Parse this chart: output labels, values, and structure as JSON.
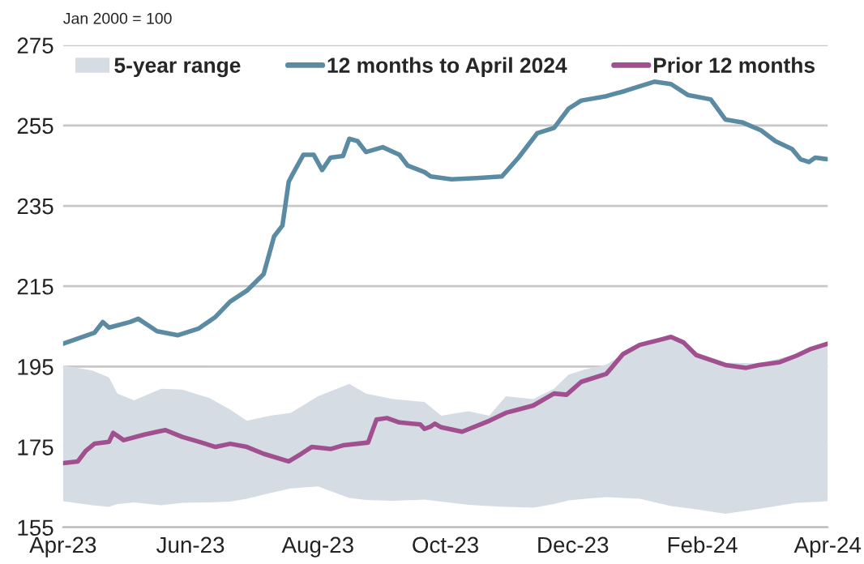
{
  "chart_data": {
    "type": "line",
    "annotations": [
      "Jan 2000 = 100"
    ],
    "xlim": [
      "2023-04-01",
      "2024-04-01"
    ],
    "xticks": [
      {
        "value": "2023-04-01",
        "label": "Apr-23"
      },
      {
        "value": "2023-06-01",
        "label": "Jun-23"
      },
      {
        "value": "2023-08-01",
        "label": "Aug-23"
      },
      {
        "value": "2023-10-01",
        "label": "Oct-23"
      },
      {
        "value": "2023-12-01",
        "label": "Dec-23"
      },
      {
        "value": "2024-02-01",
        "label": "Feb-24"
      },
      {
        "value": "2024-04-01",
        "label": "Apr-24"
      }
    ],
    "ylim": [
      155,
      275
    ],
    "yticks": [
      155,
      175,
      195,
      215,
      235,
      255,
      275
    ],
    "grid": "y",
    "legend": "top",
    "line_style": "solid",
    "marker": "none",
    "series": [
      {
        "type": "area",
        "name": "5-year range",
        "color": "#d6dce4",
        "x": [
          "2023-04-01",
          "2023-04-15",
          "2023-04-23",
          "2023-04-27",
          "2023-05-05",
          "2023-05-18",
          "2023-05-28",
          "2023-06-10",
          "2023-06-20",
          "2023-06-28",
          "2023-07-09",
          "2023-07-19",
          "2023-08-01",
          "2023-08-16",
          "2023-08-24",
          "2023-09-06",
          "2023-09-21",
          "2023-09-29",
          "2023-10-12",
          "2023-10-22",
          "2023-10-30",
          "2023-11-12",
          "2023-11-22",
          "2023-11-29",
          "2023-12-07",
          "2023-12-17",
          "2024-01-02",
          "2024-01-17",
          "2024-01-29",
          "2024-02-12",
          "2024-02-28",
          "2024-03-17",
          "2024-04-01"
        ],
        "values": [
          null,
          null,
          null,
          null,
          null,
          null,
          null,
          null,
          null,
          null,
          null,
          null,
          null,
          null,
          null,
          null,
          null,
          null,
          null,
          null,
          null,
          null,
          null,
          null,
          null,
          null,
          null,
          null,
          null,
          null,
          null,
          null,
          null
        ],
        "lower": [
          161.5,
          160.5,
          160.1,
          160.8,
          161.2,
          160.5,
          161.1,
          161.2,
          161.4,
          162.1,
          163.5,
          164.7,
          165.2,
          162.3,
          161.8,
          161.6,
          161.9,
          161.4,
          160.6,
          160.3,
          160.1,
          159.9,
          160.8,
          161.7,
          162.1,
          162.5,
          162.1,
          160.3,
          159.5,
          158.4,
          159.6,
          161.1,
          161.5
        ],
        "upper": [
          195.3,
          194,
          192.3,
          188.3,
          186.6,
          189.5,
          189.3,
          187.2,
          184.3,
          181.5,
          182.8,
          183.5,
          187.6,
          190.7,
          188.3,
          186.9,
          186.2,
          182.8,
          183.9,
          182.8,
          187.6,
          186.9,
          189.5,
          193,
          194.3,
          195.5,
          200.6,
          202.6,
          198.6,
          196,
          195.8,
          198,
          201
        ]
      },
      {
        "type": "line",
        "name": "12 months to April 2024",
        "color": "#5b8ba3",
        "x": [
          "2023-04-01",
          "2023-04-16",
          "2023-04-20",
          "2023-04-23",
          "2023-05-03",
          "2023-05-07",
          "2023-05-16",
          "2023-05-26",
          "2023-06-05",
          "2023-06-13",
          "2023-06-20",
          "2023-06-28",
          "2023-07-06",
          "2023-07-11",
          "2023-07-15",
          "2023-07-18",
          "2023-07-20",
          "2023-07-25",
          "2023-07-30",
          "2023-08-03",
          "2023-08-07",
          "2023-08-13",
          "2023-08-16",
          "2023-08-20",
          "2023-08-24",
          "2023-09-01",
          "2023-09-09",
          "2023-09-13",
          "2023-09-21",
          "2023-09-24",
          "2023-10-04",
          "2023-10-16",
          "2023-10-28",
          "2023-11-05",
          "2023-11-14",
          "2023-11-22",
          "2023-11-29",
          "2023-12-05",
          "2023-12-17",
          "2023-12-26",
          "2024-01-09",
          "2024-01-17",
          "2024-01-25",
          "2024-02-05",
          "2024-02-12",
          "2024-02-20",
          "2024-02-29",
          "2024-03-07",
          "2024-03-15",
          "2024-03-19",
          "2024-03-23",
          "2024-03-26",
          "2024-04-01"
        ],
        "values": [
          200.7,
          203.4,
          206.1,
          204.7,
          206.1,
          206.9,
          203.8,
          202.8,
          204.5,
          207.4,
          211.2,
          213.9,
          218,
          227.4,
          230.1,
          241,
          243,
          247.7,
          247.7,
          243.9,
          247,
          247.4,
          251.7,
          251.1,
          248.4,
          249.6,
          247.7,
          245,
          243.4,
          242.3,
          241.6,
          241.9,
          242.3,
          247,
          253.1,
          254.4,
          259.2,
          261.2,
          262.3,
          263.6,
          265.9,
          265.3,
          262.6,
          261.5,
          256.5,
          255.8,
          253.8,
          251.1,
          249.1,
          246.6,
          245.9,
          247,
          246.6
        ]
      },
      {
        "type": "line",
        "name": "Prior 12 months",
        "color": "#a0508e",
        "x": [
          "2023-04-01",
          "2023-04-08",
          "2023-04-12",
          "2023-04-16",
          "2023-04-23",
          "2023-04-25",
          "2023-04-30",
          "2023-05-10",
          "2023-05-18",
          "2023-05-20",
          "2023-05-28",
          "2023-06-05",
          "2023-06-13",
          "2023-06-20",
          "2023-06-28",
          "2023-07-06",
          "2023-07-18",
          "2023-07-24",
          "2023-07-29",
          "2023-08-07",
          "2023-08-13",
          "2023-08-25",
          "2023-08-29",
          "2023-09-03",
          "2023-09-09",
          "2023-09-19",
          "2023-09-21",
          "2023-09-24",
          "2023-09-26",
          "2023-09-29",
          "2023-10-09",
          "2023-10-22",
          "2023-10-30",
          "2023-11-12",
          "2023-11-22",
          "2023-11-28",
          "2023-12-05",
          "2023-12-17",
          "2023-12-20",
          "2023-12-25",
          "2024-01-02",
          "2024-01-12",
          "2024-01-17",
          "2024-01-23",
          "2024-01-29",
          "2024-02-12",
          "2024-02-22",
          "2024-02-28",
          "2024-03-09",
          "2024-03-17",
          "2024-03-24",
          "2024-04-01"
        ],
        "values": [
          171.0,
          171.4,
          174.1,
          175.8,
          176.3,
          178.5,
          176.7,
          178.1,
          179,
          179.2,
          177.5,
          176.3,
          175,
          175.8,
          175,
          173.3,
          171.4,
          173.3,
          175,
          174.5,
          175.4,
          176.1,
          181.8,
          182.2,
          181.1,
          180.6,
          179.5,
          180.1,
          180.8,
          179.9,
          178.8,
          181.5,
          183.5,
          185.3,
          188.3,
          188,
          191.2,
          193.2,
          195,
          198.1,
          200.4,
          201.7,
          202.4,
          201,
          197.9,
          195.4,
          194.7,
          195.4,
          196.1,
          197.7,
          199.4,
          200.7
        ]
      }
    ]
  }
}
